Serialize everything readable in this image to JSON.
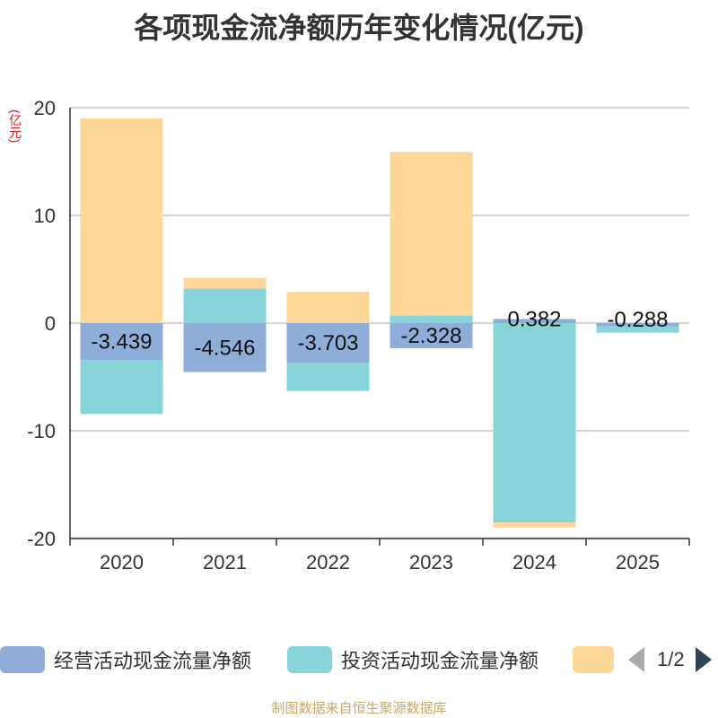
{
  "chart_data": {
    "type": "bar",
    "stacked": true,
    "title": "各项现金流净额历年变化情况(亿元)",
    "ylabel": "(亿元)",
    "xlabel": "",
    "ylim": [
      -20,
      20
    ],
    "yticks": [
      20,
      10,
      0,
      -10,
      -20
    ],
    "categories": [
      "2020",
      "2021",
      "2022",
      "2023",
      "2024",
      "2025"
    ],
    "series": [
      {
        "name": "经营活动现金流量净额",
        "color": "#8eadd9",
        "values": [
          -3.439,
          -4.546,
          -3.703,
          -2.328,
          0.382,
          -0.288
        ],
        "data_labels": [
          "-3.439",
          "-4.546",
          "-3.703",
          "-2.328",
          "0.382",
          "-0.288"
        ]
      },
      {
        "name": "投资活动现金流量净额",
        "color": "#88d4d8",
        "values": [
          -5.0,
          3.2,
          -2.6,
          0.7,
          -18.5,
          -0.6
        ]
      },
      {
        "name": "",
        "color": "#fed899",
        "values": [
          19.0,
          1.0,
          2.9,
          15.2,
          -0.5,
          0
        ]
      }
    ],
    "legend": {
      "position": "bottom",
      "page": "1/2"
    }
  },
  "source_text": "制图数据来自恒生聚源数据库"
}
